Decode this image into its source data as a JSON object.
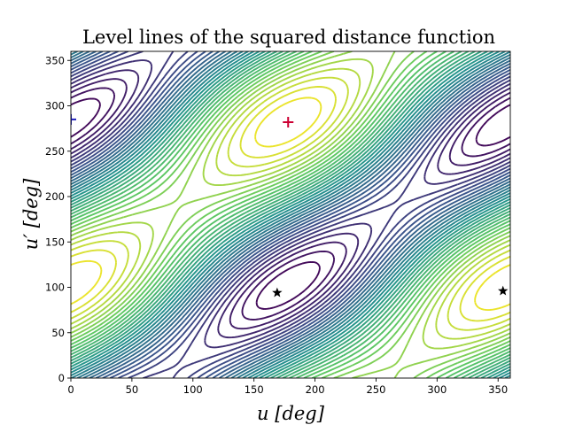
{
  "chart_data": {
    "type": "contour",
    "title": "Level lines of the squared distance function",
    "xlabel": "u [deg]",
    "ylabel": "u′ [deg]",
    "xlim": [
      0,
      360
    ],
    "ylim": [
      0,
      360
    ],
    "xticks": [
      0,
      50,
      100,
      150,
      200,
      250,
      300,
      350
    ],
    "yticks": [
      0,
      50,
      100,
      150,
      200,
      250,
      300,
      350
    ],
    "grid": false,
    "colormap": [
      "#440154",
      "#3b528b",
      "#21918c",
      "#5ec962",
      "#fde725"
    ],
    "maximum_point": {
      "u": 178,
      "u_prime": 282,
      "marker": "plus",
      "color": "#cc0033"
    },
    "secondary_point": {
      "u": 0,
      "u_prime": 285,
      "marker": "plus",
      "color": "#1f1fbf"
    },
    "stationary_points": [
      {
        "u": 169,
        "u_prime": 94,
        "marker": "star",
        "color": "#000000"
      },
      {
        "u": 354,
        "u_prime": 96,
        "marker": "star",
        "color": "#000000"
      }
    ]
  }
}
